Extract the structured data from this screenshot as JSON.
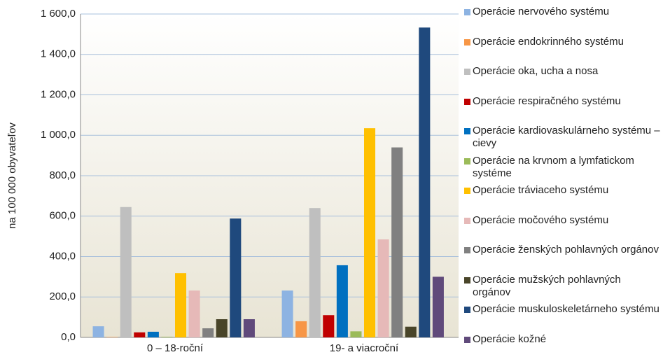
{
  "chart_data": {
    "type": "bar",
    "y_axis_label": "na 100 000 obyvateľov",
    "categories": [
      "0 – 18-roční",
      "19- a viacroční"
    ],
    "ylim": [
      0,
      1600
    ],
    "yticks": [
      {
        "value": 0,
        "label": "0,0"
      },
      {
        "value": 200,
        "label": "200,0"
      },
      {
        "value": 400,
        "label": "400,0"
      },
      {
        "value": 600,
        "label": "600,0"
      },
      {
        "value": 800,
        "label": "800,0"
      },
      {
        "value": 1000,
        "label": "1 000,0"
      },
      {
        "value": 1200,
        "label": "1 200,0"
      },
      {
        "value": 1400,
        "label": "1 400,0"
      },
      {
        "value": 1600,
        "label": "1 600,0"
      }
    ],
    "grid": true,
    "legend": "right",
    "series": [
      {
        "name": "Operácie nervového systému",
        "color": "#8db3e2",
        "values": [
          55,
          232
        ]
      },
      {
        "name": "Operácie endokrinného systému",
        "color": "#f79646",
        "values": [
          2,
          80
        ]
      },
      {
        "name": "Operácie oka, ucha a nosa",
        "color": "#bfbfbf",
        "values": [
          645,
          640
        ]
      },
      {
        "name": "Operácie respiračného systému",
        "color": "#c00000",
        "values": [
          25,
          110
        ]
      },
      {
        "name": "Operácie kardiovaskulárneho systému – cievy",
        "color": "#0070c0",
        "values": [
          28,
          357
        ]
      },
      {
        "name": "Operácie na krvnom a lymfatickom systéme",
        "color": "#9bbb59",
        "values": [
          3,
          30
        ]
      },
      {
        "name": "Operácie tráviaceho systému",
        "color": "#ffc000",
        "values": [
          318,
          1035
        ]
      },
      {
        "name": "Operácie močového systému",
        "color": "#e6b9b8",
        "values": [
          232,
          485
        ]
      },
      {
        "name": "Operácie ženských pohlavných orgánov",
        "color": "#808080",
        "values": [
          45,
          940
        ]
      },
      {
        "name": "Operácie mužských pohlavných orgánov",
        "color": "#494529",
        "values": [
          90,
          53
        ]
      },
      {
        "name": "Operácie muskuloskeletárneho systému",
        "color": "#1f497d",
        "values": [
          588,
          1533
        ]
      },
      {
        "name": "Operácie kožné",
        "color": "#604a7b",
        "values": [
          90,
          300
        ]
      }
    ]
  }
}
